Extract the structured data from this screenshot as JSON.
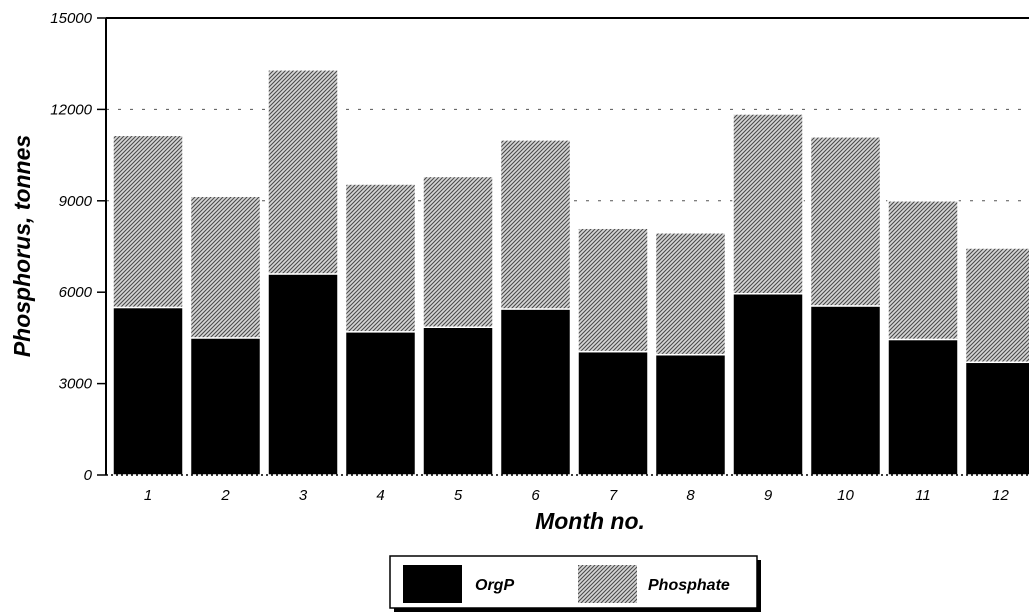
{
  "chart_data": {
    "type": "bar",
    "stacked": true,
    "categories": [
      "1",
      "2",
      "3",
      "4",
      "5",
      "6",
      "7",
      "8",
      "9",
      "10",
      "11",
      "12"
    ],
    "series": [
      {
        "name": "OrgP",
        "values": [
          5500,
          4500,
          6600,
          4700,
          4850,
          5450,
          4050,
          3950,
          5950,
          5550,
          4450,
          3700
        ]
      },
      {
        "name": "Phosphate",
        "values": [
          5650,
          4650,
          6700,
          4850,
          4950,
          5550,
          4050,
          4000,
          5900,
          5550,
          4550,
          3750
        ]
      }
    ],
    "title": "",
    "xlabel": "Month no.",
    "ylabel": "Phosphorus, tonnes",
    "ylim": [
      0,
      15000
    ],
    "yticks": [
      0,
      3000,
      6000,
      9000,
      12000,
      15000
    ],
    "grid": {
      "y": true,
      "style": "dotted",
      "lines": [
        9000,
        12000
      ]
    },
    "legend": {
      "placement": "bottom-center"
    },
    "colors": {
      "OrgP": "#000000",
      "Phosphate": "#9a9a9a"
    }
  }
}
